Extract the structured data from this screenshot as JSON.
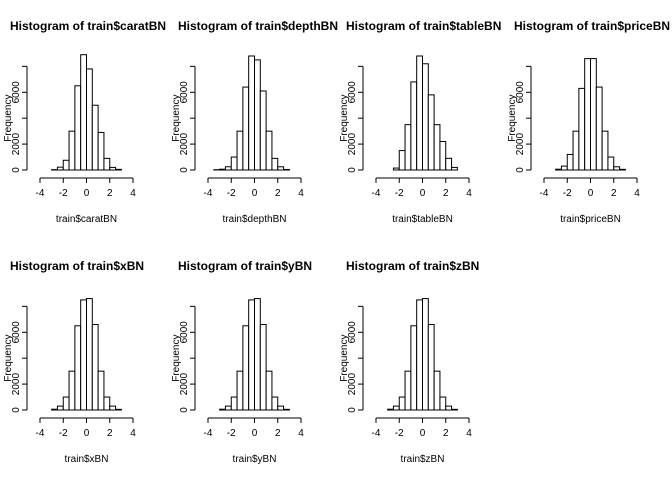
{
  "chart_data": [
    {
      "type": "bar",
      "title": "Histogram of train$caratBN",
      "xlabel": "train$caratBN",
      "ylabel": "Frequency",
      "xlim": [
        -4,
        4
      ],
      "ylim": [
        0,
        8000
      ],
      "xticks": [
        "-4",
        "-2",
        "0",
        "2",
        "4"
      ],
      "yticks": [
        "0",
        "2000",
        "6000"
      ],
      "bin_edges": [
        -3.0,
        -2.5,
        -2.0,
        -1.5,
        -1.0,
        -0.5,
        0.0,
        0.5,
        1.0,
        1.5,
        2.0,
        2.5,
        3.0
      ],
      "values": [
        30,
        220,
        750,
        3000,
        6500,
        8900,
        7800,
        5000,
        2900,
        900,
        200,
        50
      ]
    },
    {
      "type": "bar",
      "title": "Histogram of train$depthBN",
      "xlabel": "train$depthBN",
      "ylabel": "Frequency",
      "xlim": [
        -4,
        4
      ],
      "ylim": [
        0,
        8000
      ],
      "xticks": [
        "-4",
        "-2",
        "0",
        "2",
        "4"
      ],
      "yticks": [
        "0",
        "2000",
        "6000"
      ],
      "bin_edges": [
        -3.5,
        -3.0,
        -2.5,
        -2.0,
        -1.5,
        -1.0,
        -0.5,
        0.0,
        0.5,
        1.0,
        1.5,
        2.0,
        2.5,
        3.0
      ],
      "values": [
        20,
        60,
        250,
        1000,
        3000,
        6400,
        8800,
        8500,
        6100,
        3000,
        900,
        250,
        40
      ]
    },
    {
      "type": "bar",
      "title": "Histogram of train$tableBN",
      "xlabel": "train$tableBN",
      "ylabel": "Frequency",
      "xlim": [
        -4,
        4
      ],
      "ylim": [
        0,
        8000
      ],
      "xticks": [
        "-4",
        "-2",
        "0",
        "2",
        "4"
      ],
      "yticks": [
        "0",
        "2000",
        "6000"
      ],
      "bin_edges": [
        -2.5,
        -2.0,
        -1.5,
        -1.0,
        -0.5,
        0.0,
        0.5,
        1.0,
        1.5,
        2.0,
        2.5,
        3.0
      ],
      "values": [
        150,
        1500,
        3500,
        6800,
        8800,
        8200,
        5800,
        3500,
        2200,
        900,
        200
      ]
    },
    {
      "type": "bar",
      "title": "Histogram of train$priceBN",
      "xlabel": "train$priceBN",
      "ylabel": "Frequency",
      "xlim": [
        -4,
        4
      ],
      "ylim": [
        0,
        8000
      ],
      "xticks": [
        "-4",
        "-2",
        "0",
        "2",
        "4"
      ],
      "yticks": [
        "0",
        "2000",
        "6000"
      ],
      "bin_edges": [
        -3.0,
        -2.5,
        -2.0,
        -1.5,
        -1.0,
        -0.5,
        0.0,
        0.5,
        1.0,
        1.5,
        2.0,
        2.5,
        3.0
      ],
      "values": [
        60,
        300,
        1200,
        3000,
        6300,
        8600,
        8600,
        6400,
        3000,
        1000,
        250,
        50
      ]
    },
    {
      "type": "bar",
      "title": "Histogram of train$xBN",
      "xlabel": "train$xBN",
      "ylabel": "Frequency",
      "xlim": [
        -4,
        4
      ],
      "ylim": [
        0,
        8000
      ],
      "xticks": [
        "-4",
        "-2",
        "0",
        "2",
        "4"
      ],
      "yticks": [
        "0",
        "2000",
        "6000"
      ],
      "bin_edges": [
        -3.0,
        -2.5,
        -2.0,
        -1.5,
        -1.0,
        -0.5,
        0.0,
        0.5,
        1.0,
        1.5,
        2.0,
        2.5,
        3.0
      ],
      "values": [
        60,
        300,
        1000,
        3000,
        6500,
        8500,
        8600,
        6600,
        3000,
        1000,
        300,
        50
      ]
    },
    {
      "type": "bar",
      "title": "Histogram of train$yBN",
      "xlabel": "train$yBN",
      "ylabel": "Frequency",
      "xlim": [
        -4,
        4
      ],
      "ylim": [
        0,
        8000
      ],
      "xticks": [
        "-4",
        "-2",
        "0",
        "2",
        "4"
      ],
      "yticks": [
        "0",
        "2000",
        "6000"
      ],
      "bin_edges": [
        -3.0,
        -2.5,
        -2.0,
        -1.5,
        -1.0,
        -0.5,
        0.0,
        0.5,
        1.0,
        1.5,
        2.0,
        2.5,
        3.0
      ],
      "values": [
        60,
        300,
        1000,
        3000,
        6500,
        8500,
        8600,
        6600,
        3000,
        1000,
        300,
        50
      ]
    },
    {
      "type": "bar",
      "title": "Histogram of train$zBN",
      "xlabel": "train$zBN",
      "ylabel": "Frequency",
      "xlim": [
        -4,
        4
      ],
      "ylim": [
        0,
        8000
      ],
      "xticks": [
        "-4",
        "-2",
        "0",
        "2",
        "4"
      ],
      "yticks": [
        "0",
        "2000",
        "6000"
      ],
      "bin_edges": [
        -3.0,
        -2.5,
        -2.0,
        -1.5,
        -1.0,
        -0.5,
        0.0,
        0.5,
        1.0,
        1.5,
        2.0,
        2.5,
        3.0
      ],
      "values": [
        60,
        300,
        1000,
        3000,
        6500,
        8500,
        8600,
        6600,
        3000,
        1000,
        300,
        50
      ]
    }
  ]
}
